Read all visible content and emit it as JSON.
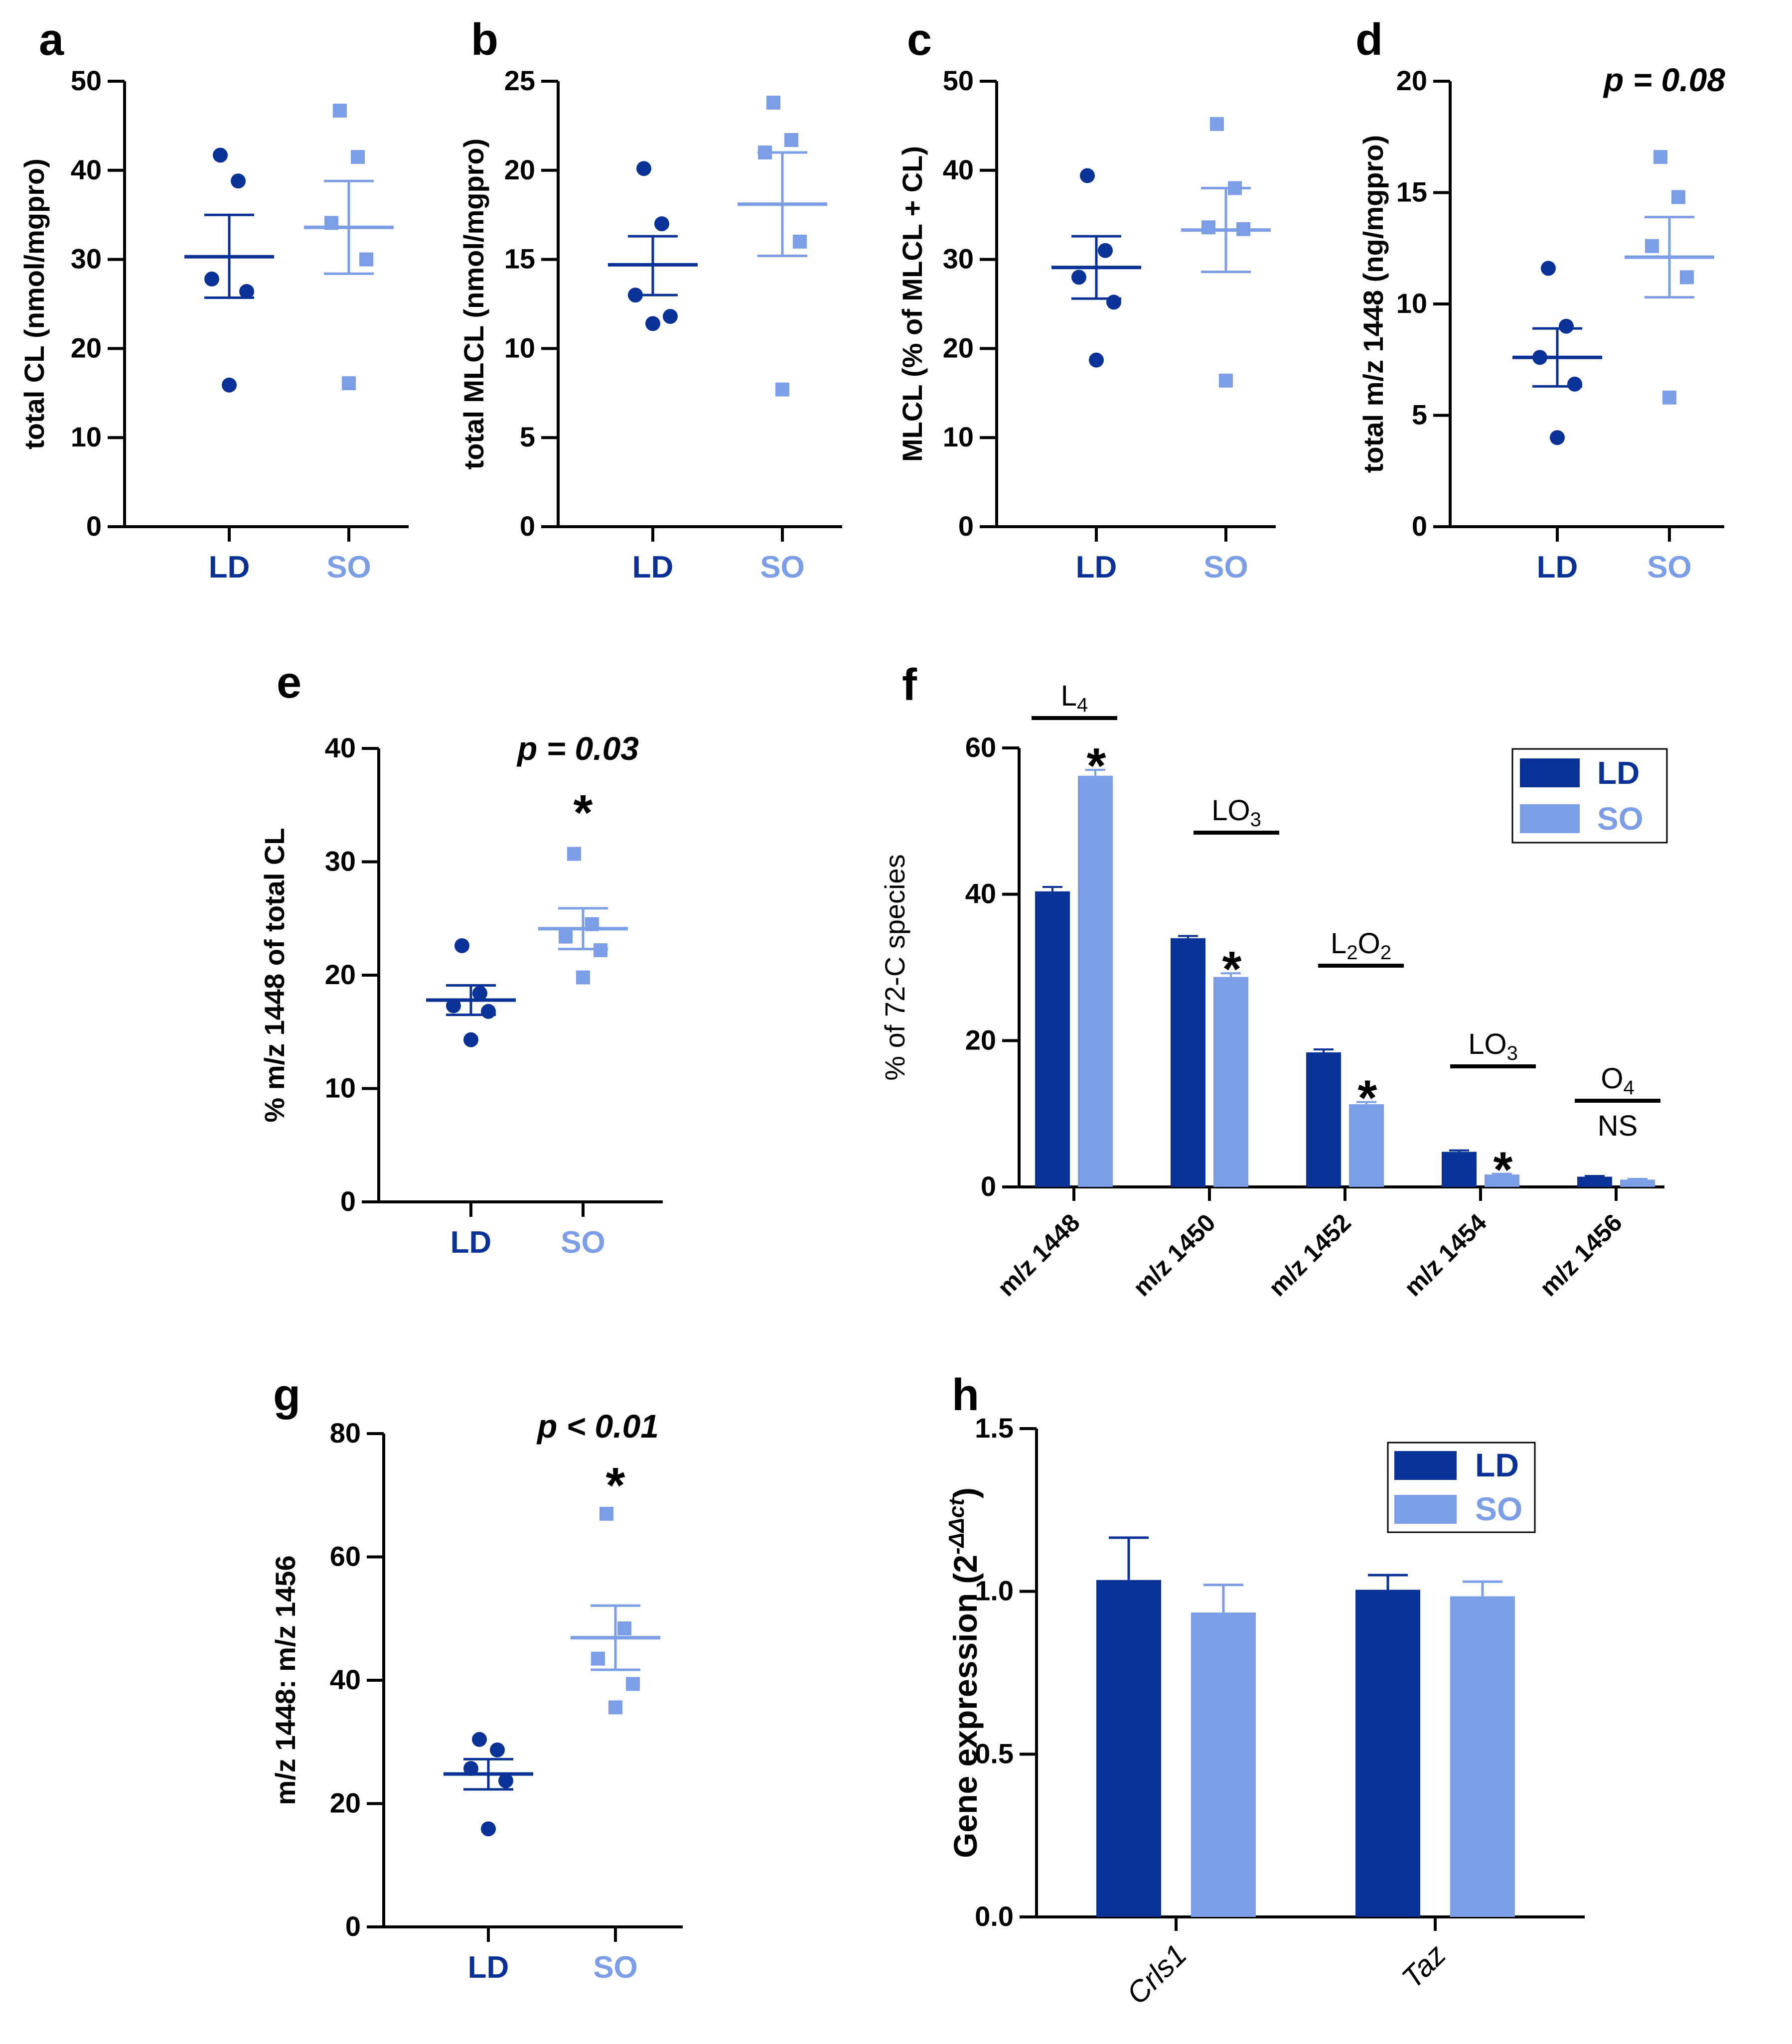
{
  "colors": {
    "ld": "#0a3296",
    "so": "#7c9ee6",
    "axis": "#000000"
  },
  "chart_data": [
    {
      "panel": "a",
      "type": "scatter",
      "ylabel": "total  CL (nmol/mgpro)",
      "ylim": [
        0,
        50
      ],
      "yticks": [
        0,
        10,
        20,
        30,
        40,
        50
      ],
      "ytick_labels": [
        "0",
        "10",
        "20",
        "30",
        "40",
        "50"
      ],
      "categories": [
        "LD",
        "SO"
      ],
      "series": [
        {
          "name": "LD",
          "points": [
            41.7,
            38.8,
            27.8,
            26.4,
            15.9
          ],
          "mean": 30.3,
          "sem_low": 25.7,
          "sem_high": 35.0
        },
        {
          "name": "SO",
          "points": [
            46.7,
            41.5,
            34.1,
            30.0,
            16.1
          ],
          "mean": 33.6,
          "sem_low": 28.4,
          "sem_high": 38.8
        }
      ],
      "annotation": ""
    },
    {
      "panel": "b",
      "type": "scatter",
      "ylabel": "total  MLCL (nmol/mgpro)",
      "ylim": [
        0,
        25
      ],
      "yticks": [
        0,
        5,
        10,
        15,
        20,
        25
      ],
      "ytick_labels": [
        "0",
        "5",
        "10",
        "15",
        "20",
        "25"
      ],
      "categories": [
        "LD",
        "SO"
      ],
      "series": [
        {
          "name": "LD",
          "points": [
            20.1,
            17.0,
            13.0,
            11.8,
            11.4
          ],
          "mean": 14.7,
          "sem_low": 13.0,
          "sem_high": 16.3
        },
        {
          "name": "SO",
          "points": [
            23.8,
            21.7,
            21.0,
            16.0,
            7.7
          ],
          "mean": 18.1,
          "sem_low": 15.2,
          "sem_high": 21.0
        }
      ],
      "annotation": ""
    },
    {
      "panel": "c",
      "type": "scatter",
      "ylabel": "MLCL (% of MLCL + CL)",
      "ylim": [
        0,
        50
      ],
      "yticks": [
        0,
        10,
        20,
        30,
        40,
        50
      ],
      "ytick_labels": [
        "0",
        "10",
        "20",
        "30",
        "40",
        "50"
      ],
      "categories": [
        "LD",
        "SO"
      ],
      "series": [
        {
          "name": "LD",
          "points": [
            39.4,
            31.0,
            28.0,
            25.2,
            18.7
          ],
          "mean": 29.1,
          "sem_low": 25.6,
          "sem_high": 32.6
        },
        {
          "name": "SO",
          "points": [
            45.2,
            38.0,
            33.6,
            33.4,
            16.4
          ],
          "mean": 33.3,
          "sem_low": 28.6,
          "sem_high": 38.0
        }
      ],
      "annotation": ""
    },
    {
      "panel": "d",
      "type": "scatter",
      "ylabel": "total m/z 1448 (ng/mgpro)",
      "ylim": [
        0,
        20
      ],
      "yticks": [
        0,
        5,
        10,
        15,
        20
      ],
      "ytick_labels": [
        "0",
        "5",
        "10",
        "15",
        "20"
      ],
      "categories": [
        "LD",
        "SO"
      ],
      "series": [
        {
          "name": "LD",
          "points": [
            11.6,
            9.0,
            7.6,
            6.4,
            4.0
          ],
          "mean": 7.6,
          "sem_low": 6.3,
          "sem_high": 8.9
        },
        {
          "name": "SO",
          "points": [
            16.6,
            14.8,
            12.6,
            11.2,
            5.8
          ],
          "mean": 12.1,
          "sem_low": 10.3,
          "sem_high": 13.9
        }
      ],
      "annotation": "p = 0.08"
    },
    {
      "panel": "e",
      "type": "scatter",
      "ylabel": "% m/z 1448 of total  CL",
      "ylim": [
        0,
        40
      ],
      "yticks": [
        0,
        10,
        20,
        30,
        40
      ],
      "ytick_labels": [
        "0",
        "10",
        "20",
        "30",
        "40"
      ],
      "categories": [
        "LD",
        "SO"
      ],
      "series": [
        {
          "name": "LD",
          "points": [
            22.6,
            18.4,
            17.3,
            16.8,
            14.3
          ],
          "mean": 17.8,
          "sem_low": 16.5,
          "sem_high": 19.1
        },
        {
          "name": "SO",
          "points": [
            30.7,
            24.5,
            23.4,
            22.2,
            19.8
          ],
          "mean": 24.1,
          "sem_low": 22.3,
          "sem_high": 25.9
        }
      ],
      "annotation": "p = 0.03",
      "star": "*"
    },
    {
      "panel": "f",
      "type": "bar",
      "ylabel": "% of 72-C species",
      "ylim": [
        0,
        60
      ],
      "yticks": [
        0,
        20,
        40,
        60
      ],
      "ytick_labels": [
        "0",
        "20",
        "40",
        "60"
      ],
      "categories": [
        "m/z 1448",
        "m/z 1450",
        "m/z 1452",
        "m/z 1454",
        "m/z 1456"
      ],
      "series": [
        {
          "name": "LD",
          "values": [
            40.4,
            34.0,
            18.4,
            4.8,
            1.4
          ],
          "errors": [
            0.6,
            0.3,
            0.4,
            0.2,
            0.1
          ]
        },
        {
          "name": "SO",
          "values": [
            56.2,
            28.7,
            11.3,
            1.7,
            1.0
          ],
          "errors": [
            0.8,
            0.5,
            0.3,
            0.1,
            0.1
          ]
        }
      ],
      "species_base": [
        "L",
        "LO",
        "L",
        "LO",
        "O"
      ],
      "species_sub": [
        "4",
        "3",
        "2",
        "3",
        "4"
      ],
      "species_mid": [
        "",
        "",
        "O",
        "",
        ""
      ],
      "species_sub2": [
        "",
        "",
        "2",
        "",
        ""
      ],
      "significance": [
        "*",
        "*",
        "*",
        "*",
        "NS"
      ],
      "legend": [
        "LD",
        "SO"
      ]
    },
    {
      "panel": "g",
      "type": "scatter",
      "ylabel": "m/z 1448: m/z 1456",
      "ylim": [
        0,
        80
      ],
      "yticks": [
        0,
        20,
        40,
        60,
        80
      ],
      "ytick_labels": [
        "0",
        "20",
        "40",
        "60",
        "80"
      ],
      "categories": [
        "LD",
        "SO"
      ],
      "series": [
        {
          "name": "LD",
          "points": [
            30.4,
            28.7,
            25.7,
            23.7,
            15.9
          ],
          "mean": 24.8,
          "sem_low": 22.3,
          "sem_high": 27.2
        },
        {
          "name": "SO",
          "points": [
            67.0,
            48.4,
            43.5,
            39.4,
            35.6
          ],
          "mean": 46.9,
          "sem_low": 41.7,
          "sem_high": 52.1
        }
      ],
      "annotation": "p < 0.01",
      "star": "*"
    },
    {
      "panel": "h",
      "type": "bar",
      "ylabel": "Gene expression (2",
      "ylabel_sup": "-ΔΔct",
      "ylabel_end": ")",
      "ylim": [
        0,
        1.5
      ],
      "yticks": [
        0,
        0.5,
        1.0,
        1.5
      ],
      "ytick_labels": [
        "0.0",
        "0.5",
        "1.0",
        "1.5"
      ],
      "categories": [
        "Crls1",
        "Taz"
      ],
      "series": [
        {
          "name": "LD",
          "values": [
            1.035,
            1.005
          ],
          "errors": [
            0.13,
            0.045
          ]
        },
        {
          "name": "SO",
          "values": [
            0.935,
            0.985
          ],
          "errors": [
            0.085,
            0.045
          ]
        }
      ],
      "legend": [
        "LD",
        "SO"
      ]
    }
  ]
}
